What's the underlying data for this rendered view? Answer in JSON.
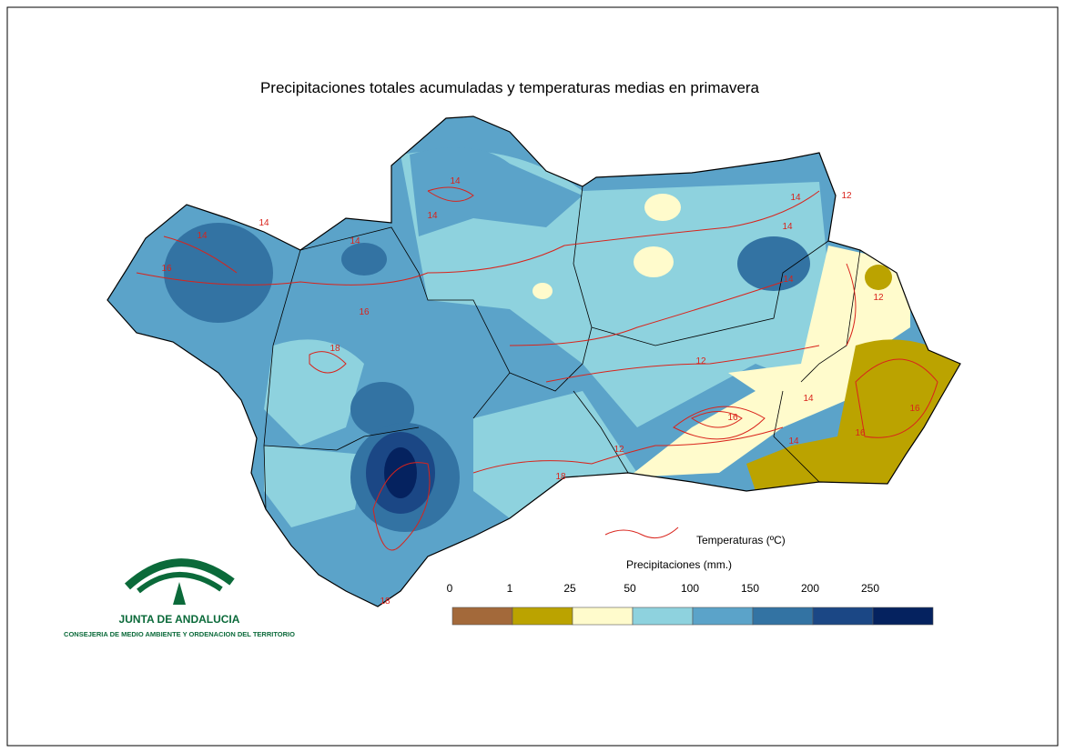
{
  "title": "Precipitaciones totales acumuladas y temperaturas medias en primavera",
  "legend": {
    "temperature_label": "Temperaturas (ºC)",
    "precipitation_label": "Precipitaciones (mm.)",
    "breaks": [
      0,
      1,
      25,
      50,
      100,
      150,
      200,
      250
    ],
    "colors": [
      "#a3693a",
      "#bba300",
      "#fffbcc",
      "#8ed2de",
      "#5ba3c9",
      "#3373a3",
      "#1b4785",
      "#05225f"
    ]
  },
  "logo": {
    "name": "JUNTA DE ANDALUCIA",
    "subtitle": "CONSEJERIA DE MEDIO AMBIENTE Y ORDENACION DEL TERRITORIO"
  },
  "contour_labels": [
    "14",
    "14",
    "14",
    "16",
    "14",
    "16",
    "18",
    "14",
    "14",
    "14",
    "12",
    "14",
    "12",
    "12",
    "14",
    "16",
    "16",
    "14",
    "12",
    "18",
    "16",
    "18"
  ]
}
